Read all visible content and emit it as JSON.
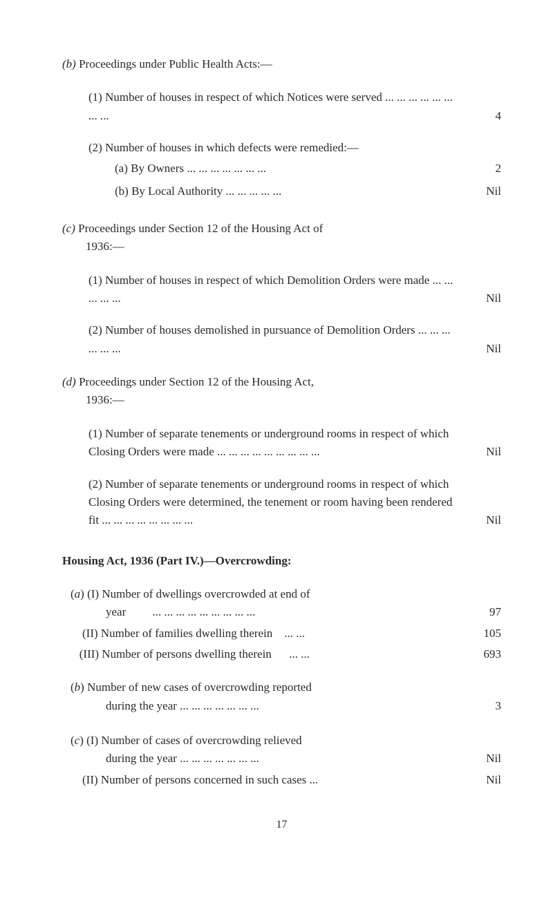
{
  "colors": {
    "background": "#ffffff",
    "text": "#2a2a2a"
  },
  "typography": {
    "font_family": "Georgia, Times New Roman, serif",
    "body_fontsize": 17,
    "line_height": 1.55
  },
  "section_b": {
    "header": "(b) Proceedings under Public Health Acts:—",
    "item1": {
      "text": "(1) Number of houses in respect of which Notices were served ... ... ... ... ... ... ... ...",
      "value": "4"
    },
    "item2": {
      "intro": "(2) Number of houses in which defects were remedied:—",
      "sub_a": {
        "text": "(a) By Owners   ... ... ... ... ... ... ...",
        "value": "2"
      },
      "sub_b": {
        "text": "(b) By Local Authority   ... ... ... ... ...",
        "value": "Nil"
      }
    }
  },
  "section_c": {
    "header": "(c) Proceedings under Section 12 of the Housing Act of 1936:—",
    "item1": {
      "text": "(1) Number of houses in respect of which Demolition Orders were made   ... ... ... ... ...",
      "value": "Nil"
    },
    "item2": {
      "text": "(2) Number of houses demolished in pursuance of Demolition Orders      ... ... ... ... ... ...",
      "value": "Nil"
    }
  },
  "section_d": {
    "header": "(d) Proceedings under Section 12 of the Housing Act, 1936:—",
    "item1": {
      "text": "(1) Number of separate tenements or underground rooms in respect of which Closing Orders were made      ... ... ... ... ... ... ... ... ...",
      "value": "Nil"
    },
    "item2": {
      "text": "(2) Number of separate tenements or underground rooms in respect of which Closing Orders were determined, the tenement or room having been rendered fit ... ... ... ... ... ... ... ...",
      "value": "Nil"
    }
  },
  "housing": {
    "header": "Housing Act, 1936 (Part IV.)—Overcrowding:",
    "a": {
      "i": {
        "text": "(a) (I) Number of dwellings overcrowded at end of year         ... ... ... ... ... ... ... ... ...",
        "value": "97"
      },
      "ii": {
        "text": "(II) Number of families dwelling therein    ... ...",
        "value": "105"
      },
      "iii": {
        "text": "(III) Number of persons dwelling therein      ... ...",
        "value": "693"
      }
    },
    "b": {
      "text": "(b) Number of new cases of overcrowding reported during the year ... ... ... ... ... ... ...",
      "value": "3"
    },
    "c": {
      "i": {
        "text": "(c) (I) Number of cases of overcrowding relieved during the year ... ... ... ... ... ... ...",
        "value": "Nil"
      },
      "ii": {
        "text": "(II) Number of persons concerned in such cases ...",
        "value": "Nil"
      }
    }
  },
  "page_number": "17"
}
